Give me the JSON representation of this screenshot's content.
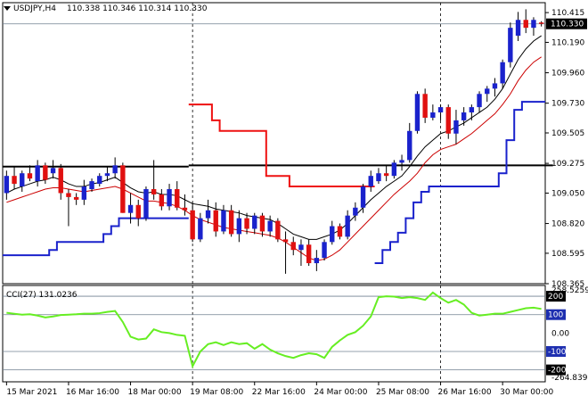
{
  "header": {
    "symbol": "USDJPY,H4",
    "ohlc": "110.338 110.346 110.314 110.330"
  },
  "colors": {
    "bull": "#1a22cc",
    "bear": "#e01010",
    "wick": "#000000",
    "ma_fast": "#000000",
    "ma_slow": "#cc0000",
    "step_red": "#ee1111",
    "step_blue": "#1a22cc",
    "support": "#000000",
    "cci": "#66ee22",
    "level_line": "#708090",
    "badge_dark": "#000000",
    "badge_blue": "#1e2fb0"
  },
  "chart_data": [
    {
      "type": "candlestick",
      "title": "USDJPY,H4",
      "y_ticks": [
        "110.415",
        "110.190",
        "109.960",
        "109.730",
        "109.505",
        "109.275",
        "109.050",
        "108.820",
        "108.595",
        "108.365"
      ],
      "ylim": [
        108.365,
        110.49
      ],
      "current_price_label": "110.330",
      "current_price": 110.33,
      "x_ticks": [
        "15 Mar 2021",
        "16 Mar 16:00",
        "18 Mar 00:00",
        "19 Mar 08:00",
        "22 Mar 16:00",
        "24 Mar 00:00",
        "25 Mar 08:00",
        "26 Mar 16:00",
        "30 Mar 00:00"
      ],
      "x_tick_index": [
        0,
        8,
        16,
        24,
        32,
        40,
        48,
        56,
        64
      ],
      "vertical_markers_index": [
        24,
        56
      ],
      "horizontal_levels": [
        109.25
      ],
      "candles": [
        {
          "o": 109.05,
          "h": 109.22,
          "l": 109.0,
          "c": 109.18
        },
        {
          "o": 109.18,
          "h": 109.25,
          "l": 109.08,
          "c": 109.12
        },
        {
          "o": 109.1,
          "h": 109.22,
          "l": 109.06,
          "c": 109.2
        },
        {
          "o": 109.2,
          "h": 109.26,
          "l": 109.14,
          "c": 109.16
        },
        {
          "o": 109.14,
          "h": 109.3,
          "l": 109.1,
          "c": 109.26
        },
        {
          "o": 109.26,
          "h": 109.28,
          "l": 109.12,
          "c": 109.15
        },
        {
          "o": 109.2,
          "h": 109.3,
          "l": 109.16,
          "c": 109.24
        },
        {
          "o": 109.24,
          "h": 109.27,
          "l": 109.0,
          "c": 109.05
        },
        {
          "o": 109.05,
          "h": 109.08,
          "l": 108.8,
          "c": 109.02
        },
        {
          "o": 109.02,
          "h": 109.05,
          "l": 108.96,
          "c": 109.0
        },
        {
          "o": 109.0,
          "h": 109.15,
          "l": 108.96,
          "c": 109.1
        },
        {
          "o": 109.08,
          "h": 109.16,
          "l": 109.06,
          "c": 109.14
        },
        {
          "o": 109.12,
          "h": 109.2,
          "l": 109.1,
          "c": 109.18
        },
        {
          "o": 109.18,
          "h": 109.25,
          "l": 109.14,
          "c": 109.2
        },
        {
          "o": 109.2,
          "h": 109.32,
          "l": 109.16,
          "c": 109.26
        },
        {
          "o": 109.26,
          "h": 109.28,
          "l": 108.9,
          "c": 108.9
        },
        {
          "o": 108.9,
          "h": 109.05,
          "l": 108.82,
          "c": 108.96
        },
        {
          "o": 108.96,
          "h": 109.0,
          "l": 108.8,
          "c": 108.86
        },
        {
          "o": 108.86,
          "h": 109.1,
          "l": 108.84,
          "c": 109.08
        },
        {
          "o": 109.08,
          "h": 109.3,
          "l": 109.0,
          "c": 109.04
        },
        {
          "o": 109.04,
          "h": 109.08,
          "l": 108.92,
          "c": 108.95
        },
        {
          "o": 108.95,
          "h": 109.12,
          "l": 108.92,
          "c": 109.08
        },
        {
          "o": 109.08,
          "h": 109.14,
          "l": 108.92,
          "c": 108.94
        },
        {
          "o": 108.94,
          "h": 109.04,
          "l": 108.88,
          "c": 108.92
        },
        {
          "o": 108.92,
          "h": 108.98,
          "l": 108.68,
          "c": 108.7
        },
        {
          "o": 108.7,
          "h": 108.9,
          "l": 108.68,
          "c": 108.86
        },
        {
          "o": 108.86,
          "h": 109.0,
          "l": 108.82,
          "c": 108.92
        },
        {
          "o": 108.92,
          "h": 108.98,
          "l": 108.72,
          "c": 108.76
        },
        {
          "o": 108.76,
          "h": 108.96,
          "l": 108.74,
          "c": 108.92
        },
        {
          "o": 108.92,
          "h": 108.96,
          "l": 108.72,
          "c": 108.74
        },
        {
          "o": 108.74,
          "h": 108.92,
          "l": 108.68,
          "c": 108.86
        },
        {
          "o": 108.86,
          "h": 108.9,
          "l": 108.74,
          "c": 108.78
        },
        {
          "o": 108.78,
          "h": 108.9,
          "l": 108.74,
          "c": 108.88
        },
        {
          "o": 108.88,
          "h": 108.9,
          "l": 108.72,
          "c": 108.76
        },
        {
          "o": 108.76,
          "h": 108.88,
          "l": 108.72,
          "c": 108.84
        },
        {
          "o": 108.84,
          "h": 108.86,
          "l": 108.68,
          "c": 108.7
        },
        {
          "o": 108.7,
          "h": 108.76,
          "l": 108.44,
          "c": 108.68
        },
        {
          "o": 108.68,
          "h": 108.72,
          "l": 108.58,
          "c": 108.62
        },
        {
          "o": 108.62,
          "h": 108.7,
          "l": 108.5,
          "c": 108.66
        },
        {
          "o": 108.66,
          "h": 108.7,
          "l": 108.5,
          "c": 108.52
        },
        {
          "o": 108.52,
          "h": 108.62,
          "l": 108.46,
          "c": 108.56
        },
        {
          "o": 108.56,
          "h": 108.7,
          "l": 108.54,
          "c": 108.68
        },
        {
          "o": 108.68,
          "h": 108.84,
          "l": 108.66,
          "c": 108.8
        },
        {
          "o": 108.8,
          "h": 108.82,
          "l": 108.7,
          "c": 108.72
        },
        {
          "o": 108.72,
          "h": 108.92,
          "l": 108.7,
          "c": 108.88
        },
        {
          "o": 108.88,
          "h": 108.98,
          "l": 108.84,
          "c": 108.94
        },
        {
          "o": 108.94,
          "h": 109.12,
          "l": 108.9,
          "c": 109.1
        },
        {
          "o": 109.1,
          "h": 109.22,
          "l": 109.06,
          "c": 109.18
        },
        {
          "o": 109.14,
          "h": 109.24,
          "l": 109.12,
          "c": 109.2
        },
        {
          "o": 109.2,
          "h": 109.26,
          "l": 109.14,
          "c": 109.18
        },
        {
          "o": 109.18,
          "h": 109.3,
          "l": 109.16,
          "c": 109.28
        },
        {
          "o": 109.28,
          "h": 109.34,
          "l": 109.22,
          "c": 109.3
        },
        {
          "o": 109.3,
          "h": 109.58,
          "l": 109.28,
          "c": 109.52
        },
        {
          "o": 109.52,
          "h": 109.82,
          "l": 109.5,
          "c": 109.8
        },
        {
          "o": 109.8,
          "h": 109.84,
          "l": 109.58,
          "c": 109.62
        },
        {
          "o": 109.62,
          "h": 109.72,
          "l": 109.6,
          "c": 109.66
        },
        {
          "o": 109.66,
          "h": 109.72,
          "l": 109.6,
          "c": 109.7
        },
        {
          "o": 109.7,
          "h": 109.72,
          "l": 109.46,
          "c": 109.5
        },
        {
          "o": 109.5,
          "h": 109.68,
          "l": 109.42,
          "c": 109.6
        },
        {
          "o": 109.6,
          "h": 109.7,
          "l": 109.56,
          "c": 109.66
        },
        {
          "o": 109.66,
          "h": 109.72,
          "l": 109.6,
          "c": 109.7
        },
        {
          "o": 109.7,
          "h": 109.82,
          "l": 109.66,
          "c": 109.8
        },
        {
          "o": 109.8,
          "h": 109.86,
          "l": 109.74,
          "c": 109.84
        },
        {
          "o": 109.84,
          "h": 109.92,
          "l": 109.78,
          "c": 109.88
        },
        {
          "o": 109.88,
          "h": 110.06,
          "l": 109.84,
          "c": 110.04
        },
        {
          "o": 110.04,
          "h": 110.34,
          "l": 110.0,
          "c": 110.3
        },
        {
          "o": 110.24,
          "h": 110.42,
          "l": 110.2,
          "c": 110.36
        },
        {
          "o": 110.36,
          "h": 110.44,
          "l": 110.26,
          "c": 110.3
        },
        {
          "o": 110.3,
          "h": 110.38,
          "l": 110.24,
          "c": 110.36
        },
        {
          "o": 110.34,
          "h": 110.35,
          "l": 110.31,
          "c": 110.33
        }
      ],
      "ma_fast": [
        109.05,
        109.08,
        109.1,
        109.12,
        109.14,
        109.15,
        109.17,
        109.15,
        109.12,
        109.1,
        109.1,
        109.12,
        109.13,
        109.15,
        109.17,
        109.13,
        109.09,
        109.06,
        109.05,
        109.06,
        109.04,
        109.04,
        109.03,
        109.0,
        108.97,
        108.96,
        108.95,
        108.93,
        108.92,
        108.91,
        108.9,
        108.88,
        108.87,
        108.86,
        108.85,
        108.82,
        108.78,
        108.74,
        108.72,
        108.7,
        108.7,
        108.72,
        108.74,
        108.77,
        108.82,
        108.88,
        108.94,
        109.0,
        109.05,
        109.1,
        109.14,
        109.18,
        109.25,
        109.33,
        109.4,
        109.45,
        109.5,
        109.52,
        109.55,
        109.58,
        109.62,
        109.66,
        109.7,
        109.76,
        109.84,
        109.95,
        110.06,
        110.14,
        110.2,
        110.24
      ],
      "ma_slow": [
        108.98,
        109.0,
        109.02,
        109.04,
        109.06,
        109.08,
        109.09,
        109.09,
        109.08,
        109.07,
        109.06,
        109.07,
        109.08,
        109.09,
        109.1,
        109.08,
        109.05,
        109.02,
        108.99,
        108.99,
        108.98,
        108.97,
        108.95,
        108.92,
        108.88,
        108.85,
        108.83,
        108.81,
        108.79,
        108.78,
        108.77,
        108.76,
        108.75,
        108.74,
        108.73,
        108.71,
        108.68,
        108.64,
        108.6,
        108.56,
        108.54,
        108.55,
        108.58,
        108.62,
        108.68,
        108.74,
        108.8,
        108.86,
        108.92,
        108.98,
        109.04,
        109.09,
        109.14,
        109.2,
        109.28,
        109.34,
        109.38,
        109.4,
        109.42,
        109.46,
        109.5,
        109.55,
        109.6,
        109.65,
        109.72,
        109.8,
        109.9,
        109.98,
        110.04,
        110.08
      ],
      "step_red": [
        null,
        null,
        null,
        null,
        null,
        null,
        null,
        null,
        null,
        null,
        null,
        null,
        null,
        null,
        null,
        null,
        null,
        null,
        null,
        null,
        null,
        null,
        null,
        null,
        109.72,
        109.72,
        109.72,
        109.6,
        109.52,
        109.52,
        109.52,
        109.52,
        109.52,
        109.52,
        109.18,
        109.18,
        109.18,
        109.1,
        109.1,
        109.1,
        109.1,
        109.1,
        109.1,
        109.1,
        109.1,
        109.1,
        109.1,
        109.1,
        null,
        null,
        null,
        null,
        null,
        null,
        null,
        null,
        null,
        null,
        null,
        null,
        null,
        null,
        null,
        null,
        null,
        null,
        null,
        null,
        null,
        null
      ],
      "step_blue": [
        108.58,
        108.58,
        108.58,
        108.58,
        108.58,
        108.58,
        108.62,
        108.68,
        108.68,
        108.68,
        108.68,
        108.68,
        108.68,
        108.74,
        108.8,
        108.86,
        108.86,
        108.86,
        108.86,
        108.86,
        108.86,
        108.86,
        108.86,
        108.86,
        null,
        null,
        null,
        null,
        null,
        null,
        null,
        null,
        null,
        null,
        null,
        null,
        null,
        null,
        null,
        null,
        null,
        null,
        null,
        null,
        null,
        null,
        null,
        null,
        108.52,
        108.62,
        108.68,
        108.75,
        108.86,
        108.98,
        109.06,
        109.1,
        109.1,
        109.1,
        109.1,
        109.1,
        109.1,
        109.1,
        109.1,
        109.1,
        109.2,
        109.45,
        109.68,
        109.74,
        109.74,
        109.74
      ],
      "support_segments": [
        {
          "from": 0,
          "to": 23,
          "value": 109.25
        },
        {
          "from": 24,
          "to": 70,
          "value": 109.26
        }
      ]
    },
    {
      "type": "line",
      "title": "CCI(27) 131.0236",
      "y_ticks": [
        "258.5259",
        "200",
        "100",
        "0.00",
        "-100",
        "-200",
        "-264.8393"
      ],
      "levels": [
        200,
        100,
        -100,
        -200
      ],
      "badge_dark": [
        "200",
        "-200"
      ],
      "badge_blue": [
        "100",
        "-100"
      ],
      "ylim": [
        -264.8393,
        258.5259
      ],
      "values": [
        110,
        105,
        100,
        102,
        95,
        85,
        90,
        98,
        100,
        102,
        105,
        105,
        108,
        115,
        120,
        60,
        -20,
        -35,
        -30,
        20,
        5,
        0,
        -10,
        -15,
        -180,
        -100,
        -60,
        -50,
        -65,
        -50,
        -60,
        -55,
        -85,
        -60,
        -90,
        -110,
        -125,
        -135,
        -120,
        -110,
        -115,
        -135,
        -75,
        -40,
        -10,
        5,
        40,
        90,
        195,
        200,
        198,
        190,
        195,
        190,
        180,
        220,
        190,
        165,
        180,
        155,
        110,
        95,
        100,
        105,
        105,
        115,
        125,
        135,
        138,
        131
      ]
    }
  ]
}
